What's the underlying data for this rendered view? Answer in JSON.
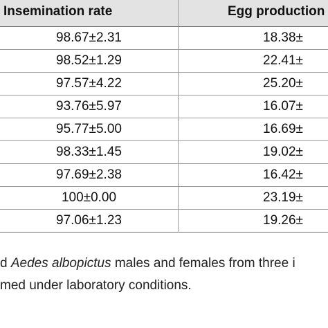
{
  "table": {
    "headers": {
      "insemination_rate": "Insemination rate",
      "egg_production": "Egg production"
    },
    "rows": [
      {
        "insemination_rate": "98.67±2.31",
        "egg_production": "18.38±"
      },
      {
        "insemination_rate": "98.52±1.29",
        "egg_production": "22.41±"
      },
      {
        "insemination_rate": "97.57±4.22",
        "egg_production": "25.20±"
      },
      {
        "insemination_rate": "93.76±5.97",
        "egg_production": "16.07±"
      },
      {
        "insemination_rate": "95.77±5.00",
        "egg_production": "16.69±"
      },
      {
        "insemination_rate": "98.33±1.45",
        "egg_production": "19.02±"
      },
      {
        "insemination_rate": "97.69±2.38",
        "egg_production": "16.42±"
      },
      {
        "insemination_rate": "100±0.00",
        "egg_production": "23.19±"
      },
      {
        "insemination_rate": "97.06±1.23",
        "egg_production": "19.26±"
      }
    ]
  },
  "caption": {
    "line1_prefix": "d ",
    "line1_species": "Aedes albopictus",
    "line1_suffix": " males and females from three i",
    "line2": "med under laboratory conditions."
  }
}
